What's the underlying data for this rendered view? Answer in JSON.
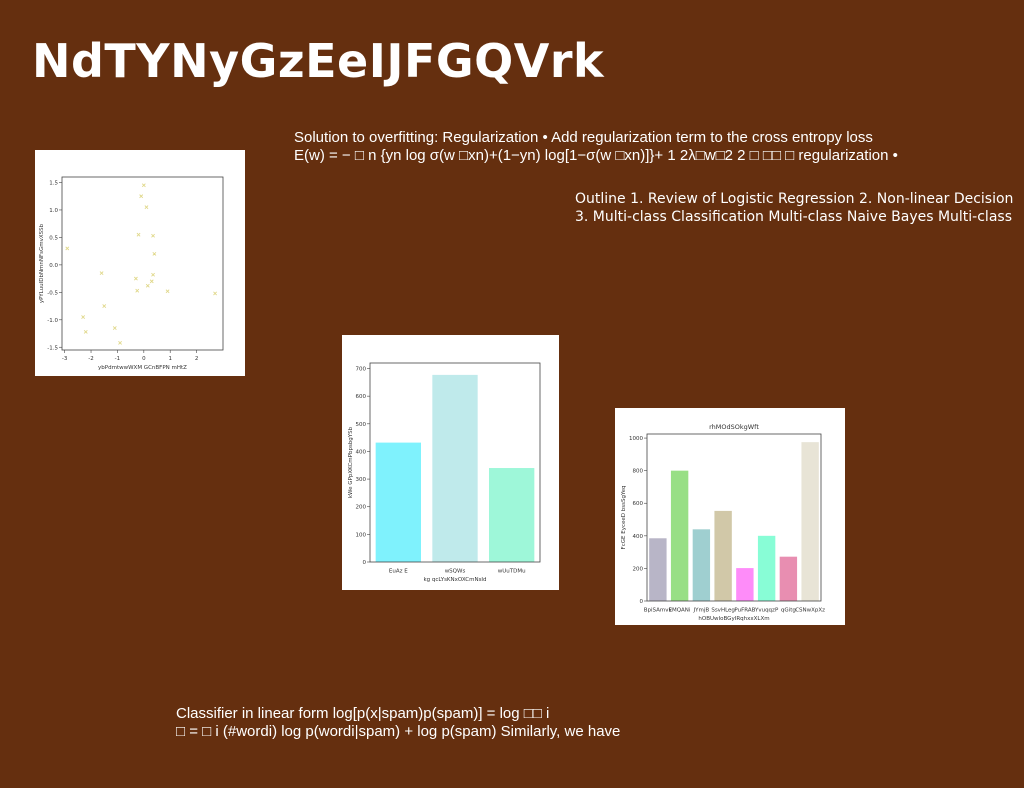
{
  "slide": {
    "title": "NdTYNyGzEeIJFGQVrk",
    "background": "#652f0f",
    "text1": "Solution to overfitting: Regularization • Add regularization term to the cross entropy loss\nE(w) = − □ n {yn log σ(w □xn)+(1−yn) log[1−σ(w □xn)]}+ 1 2λ□w□2 2 □ □□ □ regularization •",
    "text2": "Outline 1. Review of Logistic Regression 2. Non-linear Decision\n3. Multi-class Classification Multi-class Naive Bayes Multi-class",
    "text3": "Classifier in linear form log[p(x|spam)p(spam)] = log □□ i\n□ = □ i (#wordi) log p(wordi|spam) + log p(spam) Similarly, we have"
  },
  "chart_data": [
    {
      "type": "scatter",
      "title": "",
      "xlabel": "ybPdmtwwWXM GCnBFPN mHtZ",
      "ylabel": "yPYLuuIDbNmnNFsGmvXSSb",
      "xlim": [
        -3.1,
        3.0
      ],
      "ylim": [
        -1.55,
        1.6
      ],
      "xticks": [
        -3,
        -2,
        -1,
        0,
        1,
        2
      ],
      "yticks": [
        -1.5,
        -1.0,
        -0.5,
        0.0,
        0.5,
        1.0,
        1.5
      ],
      "marker_color": "#e0d88a",
      "points": [
        {
          "x": -2.9,
          "y": 0.3
        },
        {
          "x": -2.3,
          "y": -0.95
        },
        {
          "x": -2.2,
          "y": -1.22
        },
        {
          "x": -1.6,
          "y": -0.15
        },
        {
          "x": -1.5,
          "y": -0.75
        },
        {
          "x": -1.1,
          "y": -1.15
        },
        {
          "x": -0.9,
          "y": -1.42
        },
        {
          "x": -0.3,
          "y": -0.25
        },
        {
          "x": -0.25,
          "y": -0.47
        },
        {
          "x": -0.2,
          "y": 0.55
        },
        {
          "x": -0.1,
          "y": 1.25
        },
        {
          "x": 0.0,
          "y": 1.45
        },
        {
          "x": 0.1,
          "y": 1.05
        },
        {
          "x": 0.15,
          "y": -0.38
        },
        {
          "x": 0.3,
          "y": -0.3
        },
        {
          "x": 0.35,
          "y": -0.18
        },
        {
          "x": 0.35,
          "y": 0.53
        },
        {
          "x": 0.4,
          "y": 0.2
        },
        {
          "x": 0.9,
          "y": -0.48
        },
        {
          "x": 2.7,
          "y": -0.52
        }
      ]
    },
    {
      "type": "bar",
      "title": "",
      "xlabel": "kg qcLYsKNxOXCmNsId",
      "ylabel": "kWe GPpXKCmPbpsbgYSb",
      "categories": [
        "EuAz E",
        "wSQWs",
        "wUuTDMu"
      ],
      "values": [
        432,
        677,
        340
      ],
      "colors": [
        "#7ff2fd",
        "#bfeaeb",
        "#9ef7d9"
      ],
      "ylim": [
        0,
        720
      ],
      "yticks": [
        0,
        100,
        200,
        300,
        400,
        500,
        600,
        700
      ]
    },
    {
      "type": "bar",
      "title": "rhMOdSOkgWft",
      "xlabel": "hOBUwIoBGyIRqhxxXLXm",
      "ylabel": "FcGE EyceeD bssSgYeq",
      "categories": [
        "BpiSAmvE",
        "kMQANi",
        "JYmjB",
        "SsvHLeg",
        "PuFRAB",
        "YvuqqzP",
        "qGitg",
        "CSNwXpXz"
      ],
      "values": [
        385,
        800,
        440,
        553,
        202,
        400,
        272,
        975
      ],
      "colors": [
        "#b8b5c7",
        "#98df85",
        "#9fcfd0",
        "#d1c8a8",
        "#fe8cf9",
        "#88fdd6",
        "#e88eb1",
        "#e8e4d6"
      ],
      "ylim": [
        0,
        1025
      ],
      "yticks": [
        0,
        200,
        400,
        600,
        800,
        1000
      ]
    }
  ]
}
